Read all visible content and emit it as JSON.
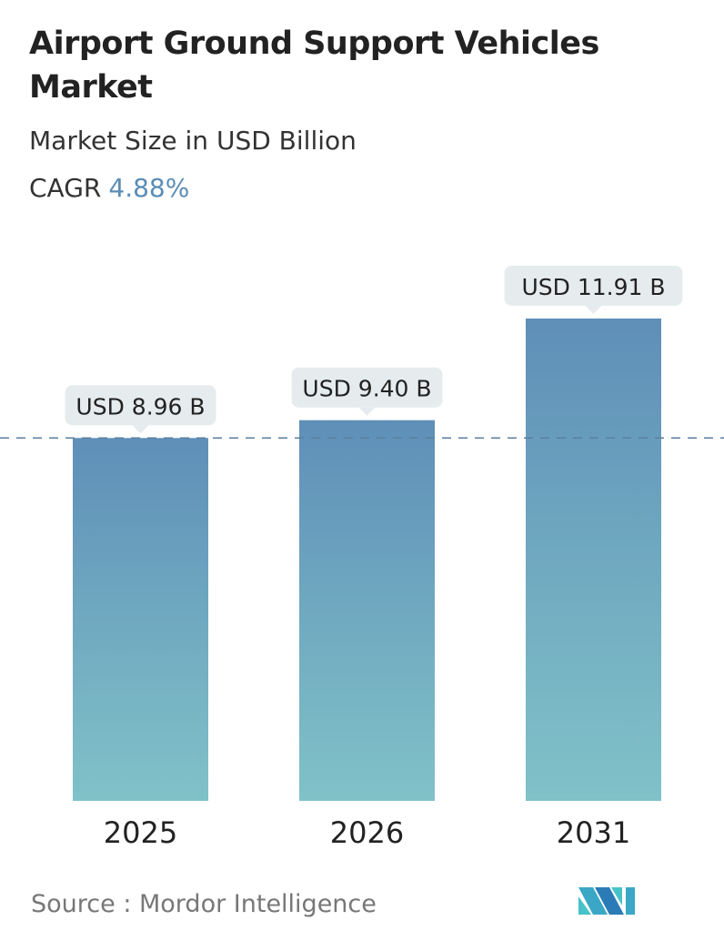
{
  "title": "Airport Ground Support Vehicles Market",
  "subtitle": "Market Size in USD Billion",
  "cagr_label": "CAGR",
  "cagr_value": "4.88%",
  "source": "Source :  Mordor Intelligence",
  "logo_text": "Mordor Intelligence",
  "colors": {
    "bar_top": "#5f8fb8",
    "bar_bottom": "#80c2c8",
    "label_bg": "#e6ecee",
    "dashed_line": "#5b7fa0",
    "cagr": "#5b8db5"
  },
  "chart_data": {
    "type": "bar",
    "categories": [
      "2025",
      "2026",
      "2031"
    ],
    "values": [
      8.96,
      9.4,
      11.91
    ],
    "data_labels": [
      "USD 8.96 B",
      "USD 9.40 B",
      "USD 11.91 B"
    ],
    "title": "Airport Ground Support Vehicles Market",
    "ylabel": "Market Size in USD Billion",
    "ylim": [
      0,
      12
    ],
    "grid": false,
    "reference_line": 8.96
  }
}
